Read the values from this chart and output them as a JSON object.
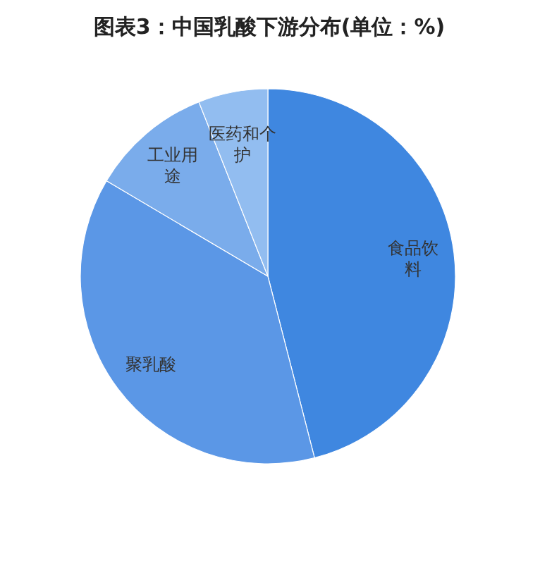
{
  "chart_data": {
    "type": "pie",
    "title": "图表3：中国乳酸下游分布(单位：%)",
    "categories": [
      "食品饮料",
      "聚乳酸",
      "工业用途",
      "医药和个护"
    ],
    "values": [
      46,
      37.5,
      10.5,
      6
    ],
    "colors": [
      "#3f87e0",
      "#5b97e6",
      "#7aaceb",
      "#92bdf0"
    ]
  }
}
